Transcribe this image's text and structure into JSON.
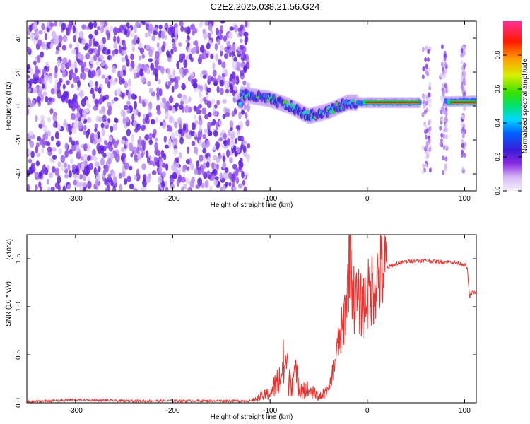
{
  "title": "C2E2.2025.038.21.56.G24",
  "chart_data": [
    {
      "type": "heatmap",
      "title": "",
      "xlabel": "Height of straight line (km)",
      "ylabel": "Frequency (Hz)",
      "xlim": [
        -350,
        112
      ],
      "ylim": [
        -50,
        50
      ],
      "x_ticks": [
        -300,
        -200,
        -100,
        0,
        100
      ],
      "y_ticks": [
        -40,
        -20,
        0,
        20,
        40
      ],
      "colorbar": {
        "label": "Normalized spectral amplitude",
        "range": [
          0.0,
          1.0
        ],
        "ticks": [
          "0.0",
          "0.2",
          "0.4",
          "0.6",
          "0.8"
        ]
      },
      "features": {
        "noise_region_x": [
          -350,
          -130
        ],
        "signal_track": [
          {
            "x": -130,
            "y": 7
          },
          {
            "x": -100,
            "y": 4
          },
          {
            "x": -80,
            "y": 0
          },
          {
            "x": -60,
            "y": -6
          },
          {
            "x": -40,
            "y": -3
          },
          {
            "x": -20,
            "y": 2
          },
          {
            "x": 0,
            "y": 2
          },
          {
            "x": 50,
            "y": 2
          },
          {
            "x": 112,
            "y": 3
          }
        ],
        "gaps_x": [
          [
            55,
            80
          ]
        ]
      }
    },
    {
      "type": "line",
      "title": "",
      "xlabel": "Height of straight line (km)",
      "ylabel": "SNR (10 * v/v)",
      "y_multiplier": "(x10^4)",
      "xlim": [
        -350,
        112
      ],
      "ylim": [
        0,
        1.75
      ],
      "x_ticks": [
        -300,
        -200,
        -100,
        0,
        100
      ],
      "y_ticks": [
        "0.0",
        "0.5",
        "1.0",
        "1.5"
      ],
      "series": [
        {
          "color": "#e8322f",
          "x": [
            -350,
            -300,
            -250,
            -200,
            -150,
            -120,
            -110,
            -100,
            -90,
            -85,
            -80,
            -75,
            -70,
            -60,
            -50,
            -40,
            -35,
            -30,
            -25,
            -20,
            -18,
            -15,
            -10,
            -5,
            0,
            5,
            10,
            15,
            20,
            30,
            40,
            50,
            60,
            70,
            80,
            90,
            100,
            103,
            105,
            108,
            112
          ],
          "y": [
            0.01,
            0.03,
            0.02,
            0.02,
            0.02,
            0.02,
            0.07,
            0.12,
            0.3,
            0.5,
            0.3,
            0.35,
            0.2,
            0.15,
            0.08,
            0.12,
            0.35,
            0.6,
            0.8,
            1.2,
            1.75,
            1.1,
            1.05,
            1.0,
            1.1,
            1.2,
            1.3,
            1.35,
            1.4,
            1.45,
            1.47,
            1.48,
            1.48,
            1.47,
            1.47,
            1.46,
            1.44,
            1.38,
            1.1,
            1.15,
            1.15
          ]
        }
      ]
    }
  ]
}
